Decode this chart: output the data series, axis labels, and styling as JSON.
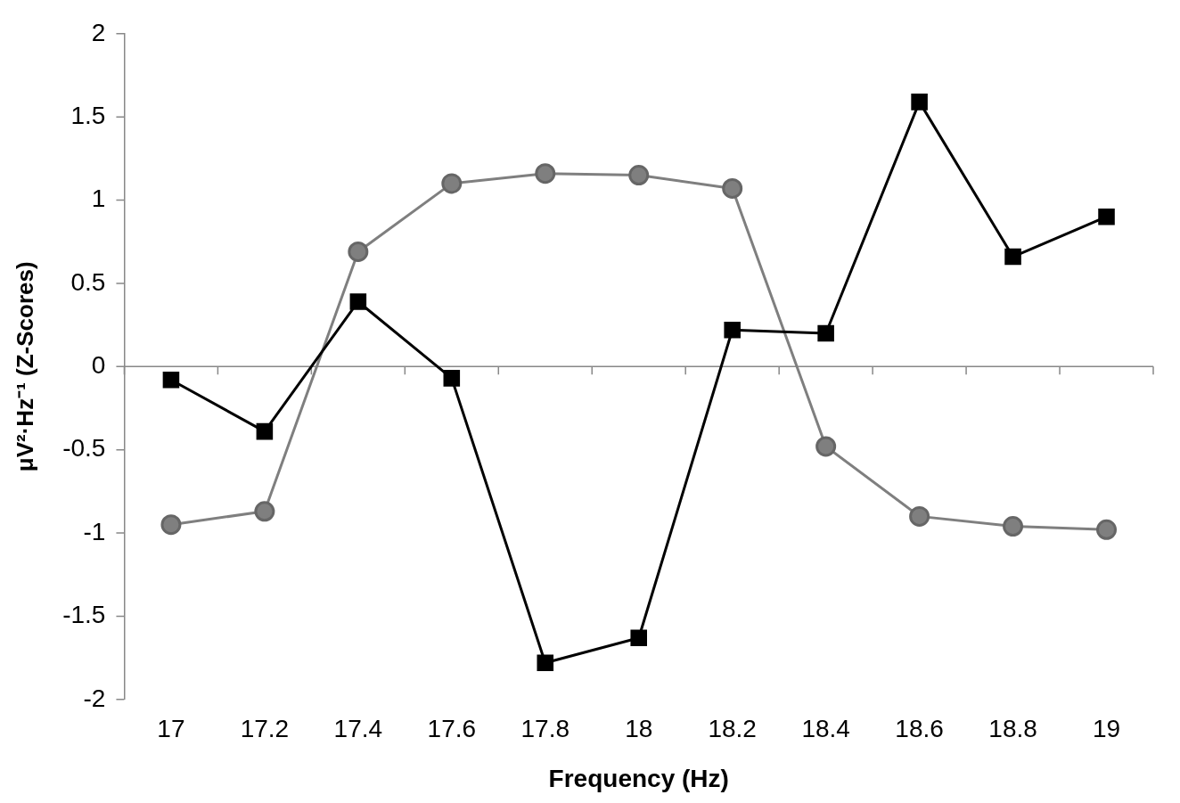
{
  "chart_data": {
    "type": "line",
    "xlabel": "Frequency (Hz)",
    "ylabel": "μV²·Hz⁻¹ (Z-Scores)",
    "categories": [
      "17",
      "17.2",
      "17.4",
      "17.6",
      "17.8",
      "18",
      "18.2",
      "18.4",
      "18.6",
      "18.8",
      "19"
    ],
    "series": [
      {
        "color": "#000000",
        "marker": "square",
        "values": [
          -0.08,
          -0.39,
          0.39,
          -0.07,
          -1.78,
          -1.63,
          0.22,
          0.2,
          1.59,
          0.66,
          0.9
        ]
      },
      {
        "color": "#7f7f7f",
        "marker": "circle",
        "values": [
          -0.95,
          -0.87,
          0.69,
          1.1,
          1.16,
          1.15,
          1.07,
          -0.48,
          -0.9,
          -0.96,
          -0.98
        ]
      }
    ],
    "ref_lines": [
      {
        "axis": "y",
        "value": 0,
        "color": "#888888"
      }
    ],
    "ylim": [
      -2,
      2
    ],
    "yticks": [
      -2,
      -1.5,
      -1,
      -0.5,
      0,
      0.5,
      1,
      1.5,
      2
    ],
    "grid": false,
    "legend": false
  }
}
